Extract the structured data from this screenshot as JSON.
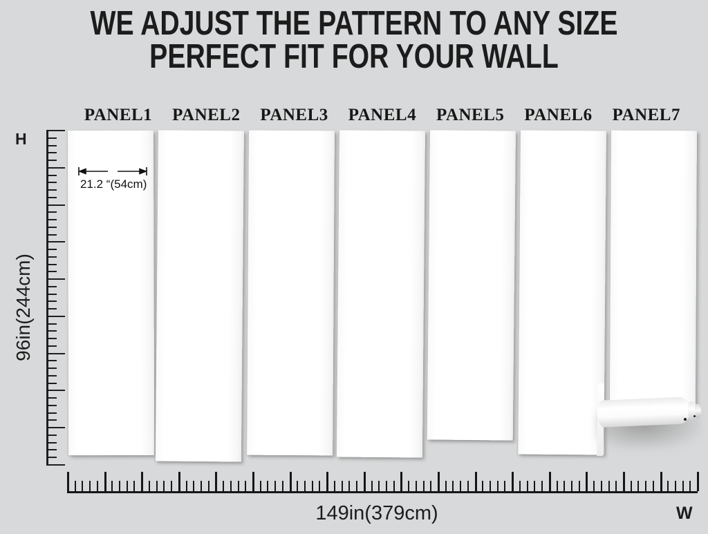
{
  "title": {
    "line1": "WE ADJUST THE PATTERN TO ANY SIZE",
    "line2": "PERFECT FIT FOR YOUR WALL"
  },
  "panels": {
    "labels": [
      "PANEL1",
      "PANEL2",
      "PANEL3",
      "PANEL4",
      "PANEL5",
      "PANEL6",
      "PANEL7"
    ]
  },
  "dimensions": {
    "height_letter": "H",
    "width_letter": "W",
    "wall_height": "96in(244cm)",
    "wall_width": "149in(379cm)",
    "panel_width": "21.2 “(54cm)"
  },
  "colors": {
    "background": "#d8d9da",
    "ink": "#1c1c1c",
    "panel_white": "#fdfdfd"
  }
}
